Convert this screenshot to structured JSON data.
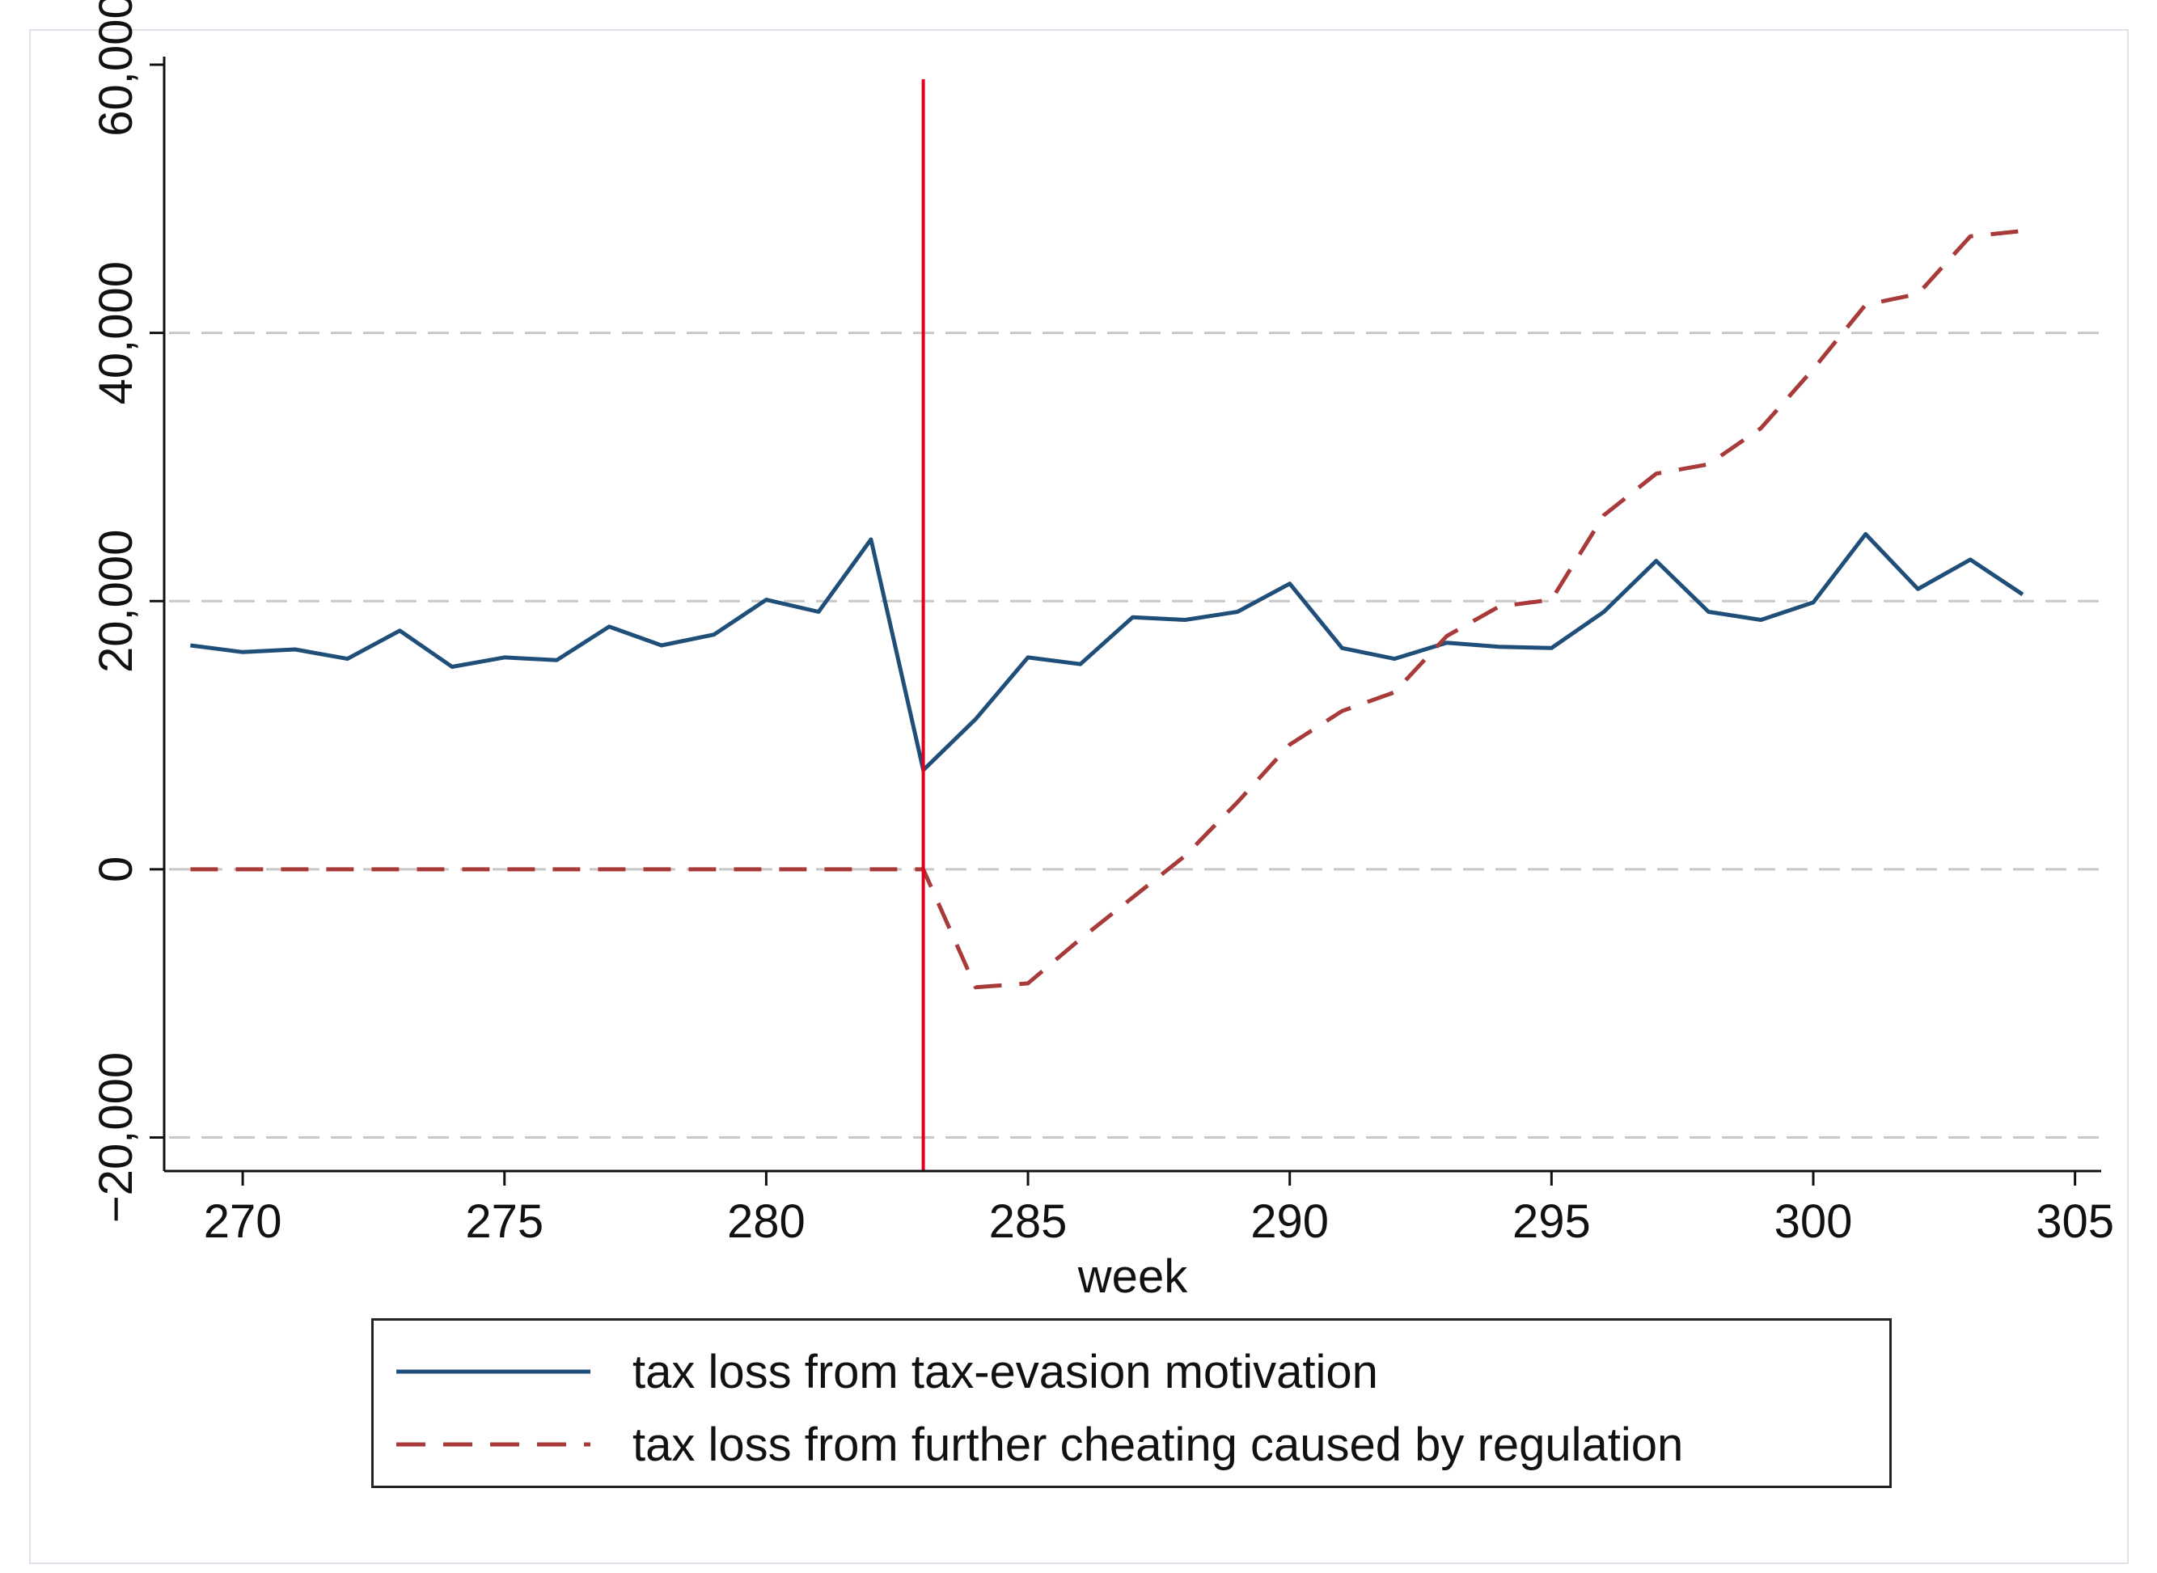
{
  "chart_data": {
    "type": "line",
    "title": "",
    "xlabel": "week",
    "ylabel": "",
    "xlim": [
      268.5,
      305.5
    ],
    "ylim": [
      -22500,
      60000
    ],
    "x_ticks": [
      270,
      275,
      280,
      285,
      290,
      295,
      300,
      305
    ],
    "x_tick_labels": [
      "270",
      "275",
      "280",
      "285",
      "290",
      "295",
      "300",
      "305"
    ],
    "y_ticks": [
      -20000,
      0,
      20000,
      40000,
      60000
    ],
    "y_tick_labels": [
      "−20,000",
      "0",
      "20,000",
      "40,000",
      "60,000"
    ],
    "y_gridlines": [
      -20000,
      0,
      20000,
      40000
    ],
    "reference_line": {
      "x": 283,
      "color": "#e0001b"
    },
    "x": [
      269,
      270,
      271,
      272,
      273,
      274,
      275,
      276,
      277,
      278,
      279,
      280,
      281,
      282,
      283,
      284,
      285,
      286,
      287,
      288,
      289,
      290,
      291,
      292,
      293,
      294,
      295,
      296,
      297,
      298,
      299,
      300,
      301,
      302,
      303,
      304
    ],
    "series": [
      {
        "name": "tax loss from tax-evasion motivation",
        "style": "solid",
        "color": "#1f4e79",
        "values": [
          16700,
          16200,
          16400,
          15700,
          17800,
          15100,
          15800,
          15600,
          18100,
          16700,
          17500,
          20100,
          19200,
          24600,
          7400,
          11200,
          15800,
          15300,
          18800,
          18600,
          19200,
          21300,
          16500,
          15700,
          16900,
          16600,
          16500,
          19200,
          23000,
          19200,
          18600,
          19900,
          25000,
          20900,
          23100,
          20500
        ]
      },
      {
        "name": "tax loss from further cheating caused by regulation",
        "style": "dashed",
        "color": "#a83a3a",
        "values": [
          0,
          0,
          0,
          0,
          0,
          0,
          0,
          0,
          0,
          0,
          0,
          0,
          0,
          0,
          0,
          -8800,
          -8500,
          -5200,
          -2100,
          1000,
          5000,
          9300,
          11800,
          13200,
          17400,
          19600,
          20100,
          26400,
          29500,
          30200,
          32900,
          37300,
          42100,
          42900,
          47200,
          47600
        ]
      }
    ]
  },
  "legend": {
    "entries": [
      "tax loss from tax-evasion motivation",
      "tax loss from further cheating caused by regulation"
    ]
  }
}
